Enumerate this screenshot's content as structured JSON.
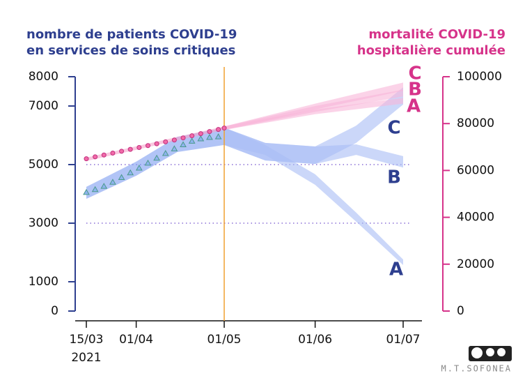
{
  "chart_data": {
    "type": "line",
    "y_label": [
      "nombre de patients COVID-19",
      "en services de soins critiques"
    ],
    "y2_label": [
      "mortalité COVID-19",
      "hospitalière cumulée"
    ],
    "year_label": "2021",
    "author": "M.T.SOFONEA",
    "xlim": [
      "2021-03-15",
      "2021-07-01"
    ],
    "xticks": [
      {
        "value": "2021-03-15",
        "label": "15/03"
      },
      {
        "value": "2021-04-01",
        "label": "01/04"
      },
      {
        "value": "2021-05-01",
        "label": "01/05"
      },
      {
        "value": "2021-06-01",
        "label": "01/06"
      },
      {
        "value": "2021-07-01",
        "label": "01/07"
      }
    ],
    "ylim": [
      0,
      8000
    ],
    "yticks": [
      0,
      1000,
      3000,
      5000,
      7000,
      8000
    ],
    "y2lim": [
      0,
      100000
    ],
    "y2ticks": [
      0,
      20000,
      40000,
      60000,
      80000,
      100000
    ],
    "gridlines": [
      3000,
      5000
    ],
    "vline": "2021-05-01",
    "vline_color": "#f0a030",
    "y_color": "#2e3f8f",
    "y2_color": "#d6338a",
    "series": [
      {
        "marker": "triangle",
        "color": "#4a9a8a",
        "fill": "#8fb3f0",
        "x": [
          "2021-03-15",
          "2021-03-18",
          "2021-03-21",
          "2021-03-24",
          "2021-03-27",
          "2021-03-30",
          "2021-04-02",
          "2021-04-05",
          "2021-04-08",
          "2021-04-11",
          "2021-04-14",
          "2021-04-17",
          "2021-04-20",
          "2021-04-23",
          "2021-04-26",
          "2021-04-29"
        ],
        "values": [
          4050,
          4150,
          4260,
          4400,
          4560,
          4720,
          4880,
          5050,
          5220,
          5380,
          5540,
          5680,
          5800,
          5880,
          5930,
          5950
        ]
      },
      {
        "marker": "circle",
        "axis": "y2",
        "color": "#c2307e",
        "fill": "#f06aa8",
        "x": [
          "2021-03-15",
          "2021-03-18",
          "2021-03-21",
          "2021-03-24",
          "2021-03-27",
          "2021-03-30",
          "2021-04-02",
          "2021-04-05",
          "2021-04-08",
          "2021-04-11",
          "2021-04-14",
          "2021-04-17",
          "2021-04-20",
          "2021-04-23",
          "2021-04-26",
          "2021-04-29",
          "2021-05-01"
        ],
        "values": [
          65000,
          65800,
          66600,
          67400,
          68200,
          69000,
          69800,
          70600,
          71400,
          72200,
          73000,
          73900,
          74800,
          75700,
          76600,
          77500,
          78100
        ]
      }
    ],
    "bands": [
      {
        "color": "#7d9cf0",
        "x": [
          "2021-03-15",
          "2021-04-01",
          "2021-04-15",
          "2021-05-01"
        ],
        "low": [
          3830,
          4620,
          5430,
          5670
        ],
        "high": [
          4240,
          5100,
          5950,
          6260
        ]
      },
      {
        "name": "A",
        "color": "#a9bdf5",
        "x": [
          "2021-05-01",
          "2021-05-15",
          "2021-06-01",
          "2021-06-15",
          "2021-07-01"
        ],
        "low": [
          5670,
          5330,
          4310,
          3050,
          1570
        ],
        "high": [
          6260,
          5670,
          4670,
          3360,
          1760
        ]
      },
      {
        "name": "B",
        "color": "#a9bdf5",
        "x": [
          "2021-05-01",
          "2021-05-15",
          "2021-06-01",
          "2021-06-15",
          "2021-07-01"
        ],
        "low": [
          5670,
          5140,
          5020,
          5330,
          4900
        ],
        "high": [
          6260,
          5740,
          5620,
          5690,
          5290
        ]
      },
      {
        "name": "C",
        "color": "#a9bdf5",
        "x": [
          "2021-05-01",
          "2021-05-15",
          "2021-06-01",
          "2021-06-15",
          "2021-07-01"
        ],
        "low": [
          5670,
          5140,
          5020,
          5740,
          7050
        ],
        "high": [
          6260,
          5740,
          5620,
          6330,
          7640
        ]
      },
      {
        "axis": "y2",
        "color": "#f7a3cc",
        "x": [
          "2021-03-15",
          "2021-04-01",
          "2021-04-15",
          "2021-05-01"
        ],
        "low": [
          64000,
          68800,
          72800,
          77300
        ],
        "high": [
          65500,
          70300,
          74300,
          78800
        ]
      },
      {
        "name": "A",
        "axis": "y2",
        "color": "#f9b6d8",
        "x": [
          "2021-05-01",
          "2021-06-01",
          "2021-07-01"
        ],
        "low": [
          77300,
          84000,
          88500
        ],
        "high": [
          78800,
          86000,
          91000
        ]
      },
      {
        "name": "B",
        "axis": "y2",
        "color": "#f9b6d8",
        "x": [
          "2021-05-01",
          "2021-06-01",
          "2021-07-01"
        ],
        "low": [
          77300,
          85000,
          91500
        ],
        "high": [
          78800,
          87500,
          94500
        ]
      },
      {
        "name": "C",
        "axis": "y2",
        "color": "#f9b6d8",
        "x": [
          "2021-05-01",
          "2021-06-01",
          "2021-07-01"
        ],
        "low": [
          77300,
          86000,
          94000
        ],
        "high": [
          78800,
          88500,
          97500
        ]
      }
    ]
  }
}
